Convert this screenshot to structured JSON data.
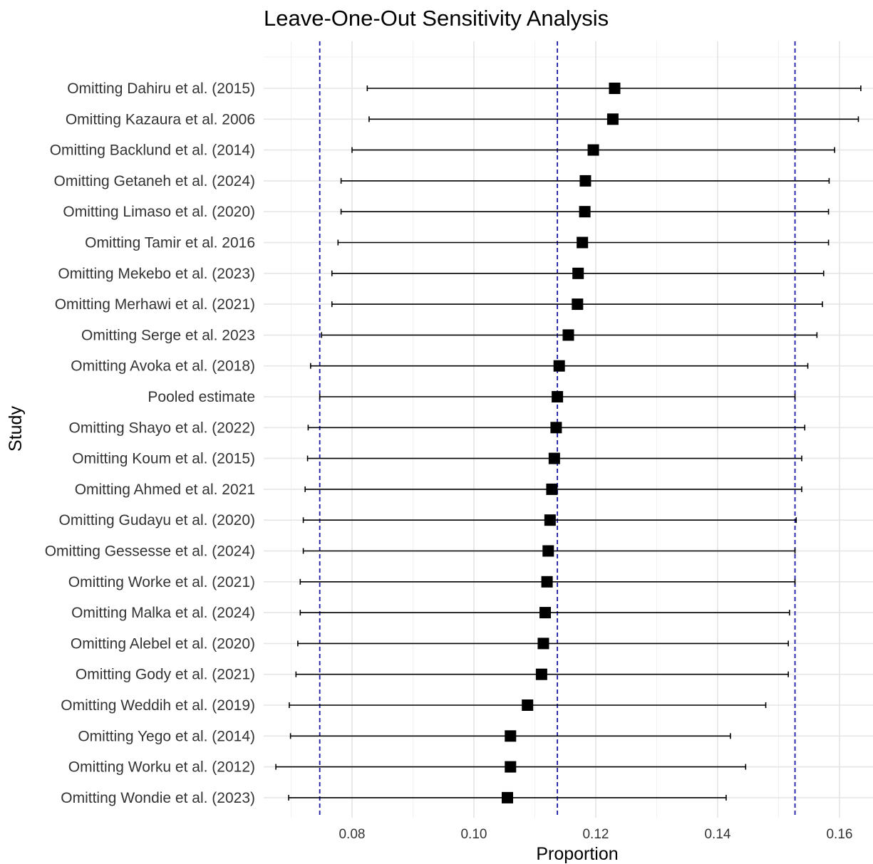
{
  "chart_data": {
    "type": "forest",
    "title": "Leave-One-Out Sensitivity Analysis",
    "xlabel": "Proportion",
    "ylabel": "Study",
    "xlim": [
      0.0655,
      0.1655
    ],
    "xticks": [
      0.08,
      0.1,
      0.12,
      0.14,
      0.16
    ],
    "xtick_labels": [
      "0.08",
      "0.10",
      "0.12",
      "0.14",
      "0.16"
    ],
    "grid": true,
    "reference_lines": [
      0.0747,
      0.1137,
      0.1527
    ],
    "reference_line_color": "#1a1aa6",
    "marker_color": "#000000",
    "studies": [
      {
        "label": "Omitting Dahiru et al. (2015)",
        "estimate": 0.1231,
        "lower": 0.0825,
        "upper": 0.1635
      },
      {
        "label": "Omitting Kazaura et al. 2006",
        "estimate": 0.1228,
        "lower": 0.0828,
        "upper": 0.1631
      },
      {
        "label": "Omitting Backlund et al. (2014)",
        "estimate": 0.1196,
        "lower": 0.08,
        "upper": 0.1592
      },
      {
        "label": "Omitting Getaneh et al. (2024)",
        "estimate": 0.1183,
        "lower": 0.0782,
        "upper": 0.1583
      },
      {
        "label": "Omitting Limaso et al. (2020)",
        "estimate": 0.1182,
        "lower": 0.0782,
        "upper": 0.1582
      },
      {
        "label": "Omitting Tamir et al. 2016",
        "estimate": 0.1178,
        "lower": 0.0777,
        "upper": 0.1582
      },
      {
        "label": "Omitting Mekebo et al. (2023)",
        "estimate": 0.1171,
        "lower": 0.0767,
        "upper": 0.1574
      },
      {
        "label": "Omitting Merhawi et al. (2021)",
        "estimate": 0.117,
        "lower": 0.0767,
        "upper": 0.1572
      },
      {
        "label": "Omitting Serge et al. 2023",
        "estimate": 0.1155,
        "lower": 0.075,
        "upper": 0.1563
      },
      {
        "label": "Omitting Avoka et al. (2018)",
        "estimate": 0.114,
        "lower": 0.0732,
        "upper": 0.1548
      },
      {
        "label": "Pooled estimate",
        "estimate": 0.1137,
        "lower": 0.0747,
        "upper": 0.1527
      },
      {
        "label": "Omitting Shayo et al. (2022)",
        "estimate": 0.1135,
        "lower": 0.0728,
        "upper": 0.1543
      },
      {
        "label": "Omitting Koum et al. (2015)",
        "estimate": 0.1132,
        "lower": 0.0727,
        "upper": 0.1538
      },
      {
        "label": "Omitting Ahmed et al. 2021",
        "estimate": 0.1128,
        "lower": 0.0723,
        "upper": 0.1538
      },
      {
        "label": "Omitting Gudayu et al. (2020)",
        "estimate": 0.1125,
        "lower": 0.072,
        "upper": 0.1529
      },
      {
        "label": "Omitting Gessesse et al. (2024)",
        "estimate": 0.1122,
        "lower": 0.072,
        "upper": 0.1527
      },
      {
        "label": "Omitting Worke et al. (2021)",
        "estimate": 0.112,
        "lower": 0.0715,
        "upper": 0.1527
      },
      {
        "label": "Omitting Malka et al. (2024)",
        "estimate": 0.1117,
        "lower": 0.0715,
        "upper": 0.1518
      },
      {
        "label": "Omitting Alebel et al. (2020)",
        "estimate": 0.1114,
        "lower": 0.0711,
        "upper": 0.1516
      },
      {
        "label": "Omitting Gody et al. (2021)",
        "estimate": 0.1111,
        "lower": 0.0708,
        "upper": 0.1516
      },
      {
        "label": "Omitting Weddih et al. (2019)",
        "estimate": 0.1088,
        "lower": 0.0697,
        "upper": 0.1479
      },
      {
        "label": "Omitting Yego et al. (2014)",
        "estimate": 0.106,
        "lower": 0.0699,
        "upper": 0.1421
      },
      {
        "label": "Omitting Worku et al. (2012)",
        "estimate": 0.106,
        "lower": 0.0675,
        "upper": 0.1446
      },
      {
        "label": "Omitting Wondie et al. (2023)",
        "estimate": 0.1055,
        "lower": 0.0696,
        "upper": 0.1414
      }
    ]
  }
}
